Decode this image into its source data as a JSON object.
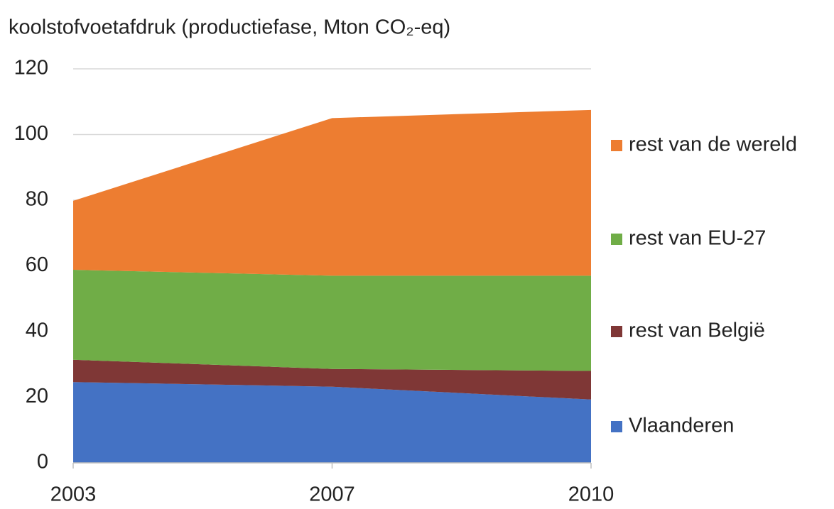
{
  "chart_data": {
    "type": "stacked_area",
    "title": "koolstofvoetafdruk (productiefase, Mton CO₂-eq)",
    "categories": [
      "2003",
      "2007",
      "2010"
    ],
    "series": [
      {
        "name": "Vlaanderen",
        "color": "#4472c4",
        "values": [
          24.6,
          23.2,
          19.3
        ]
      },
      {
        "name": "rest van België",
        "color": "#7f3736",
        "values": [
          6.8,
          5.4,
          8.7
        ]
      },
      {
        "name": "rest van EU-27",
        "color": "#70ad47",
        "values": [
          27.4,
          28.4,
          29
        ]
      },
      {
        "name": "rest van de wereld",
        "color": "#ed7d31",
        "values": [
          21,
          48,
          50.5
        ]
      }
    ],
    "ylim": [
      0,
      120
    ],
    "yticks": [
      0,
      20,
      40,
      60,
      80,
      100,
      120
    ],
    "grid": true,
    "legend": "right"
  }
}
